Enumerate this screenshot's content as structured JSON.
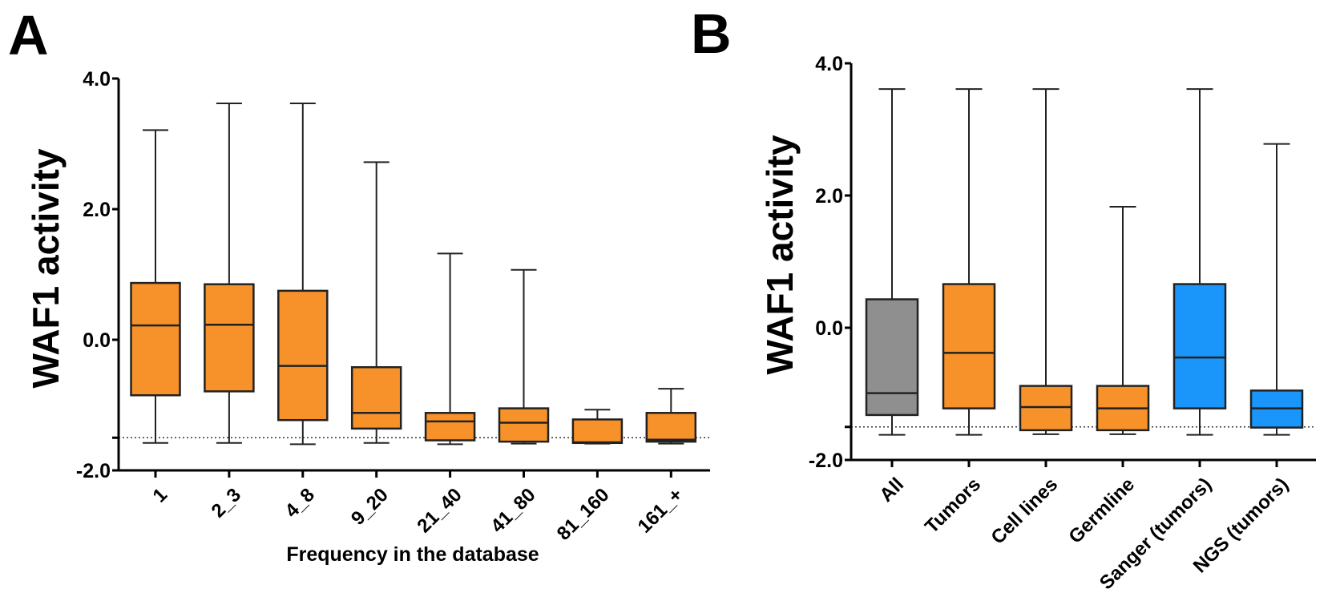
{
  "chart_data": [
    {
      "type": "boxplot",
      "panel": "A",
      "title": "",
      "xlabel": "Frequency in the database",
      "ylabel": "WAF1 activity",
      "ylim": [
        -2.0,
        4.0
      ],
      "yticks": [
        -2.0,
        0.0,
        2.0,
        4.0
      ],
      "ytick_labels": [
        "-2.0",
        "0.0",
        "2.0",
        "4.0"
      ],
      "reference_line": -1.5,
      "grid": false,
      "categories": [
        "1",
        "2_3",
        "4_8",
        "9_20",
        "21_40",
        "41_80",
        "81_160",
        "161_+"
      ],
      "boxes": [
        {
          "category": "1",
          "whisker_low": -1.58,
          "q1": -0.85,
          "median": 0.22,
          "q3": 0.87,
          "whisker_high": 3.21,
          "color": "#f7922a"
        },
        {
          "category": "2_3",
          "whisker_low": -1.58,
          "q1": -0.79,
          "median": 0.23,
          "q3": 0.85,
          "whisker_high": 3.62,
          "color": "#f7922a"
        },
        {
          "category": "4_8",
          "whisker_low": -1.6,
          "q1": -1.23,
          "median": -0.4,
          "q3": 0.75,
          "whisker_high": 3.62,
          "color": "#f7922a"
        },
        {
          "category": "9_20",
          "whisker_low": -1.58,
          "q1": -1.36,
          "median": -1.12,
          "q3": -0.42,
          "whisker_high": 2.72,
          "color": "#f7922a"
        },
        {
          "category": "21_40",
          "whisker_low": -1.6,
          "q1": -1.54,
          "median": -1.25,
          "q3": -1.12,
          "whisker_high": 1.32,
          "color": "#f7922a"
        },
        {
          "category": "41_80",
          "whisker_low": -1.59,
          "q1": -1.56,
          "median": -1.27,
          "q3": -1.05,
          "whisker_high": 1.07,
          "color": "#f7922a"
        },
        {
          "category": "81_160",
          "whisker_low": -1.59,
          "q1": -1.58,
          "median": -1.57,
          "q3": -1.22,
          "whisker_high": -1.07,
          "color": "#f7922a"
        },
        {
          "category": "161_+",
          "whisker_low": -1.59,
          "q1": -1.56,
          "median": -1.53,
          "q3": -1.12,
          "whisker_high": -0.75,
          "color": "#f7922a"
        }
      ]
    },
    {
      "type": "boxplot",
      "panel": "B",
      "title": "",
      "xlabel": "",
      "ylabel": "WAF1 activity",
      "ylim": [
        -2.0,
        4.0
      ],
      "yticks": [
        -2.0,
        0.0,
        2.0,
        4.0
      ],
      "ytick_labels": [
        "-2.0",
        "0.0",
        "2.0",
        "4.0"
      ],
      "reference_line": -1.5,
      "grid": false,
      "categories": [
        "All",
        "Tumors",
        "Cell lines",
        "Germline",
        "Sanger (tumors)",
        "NGS (tumors)"
      ],
      "boxes": [
        {
          "category": "All",
          "whisker_low": -1.62,
          "q1": -1.32,
          "median": -0.99,
          "q3": 0.43,
          "whisker_high": 3.61,
          "color": "#8f8f8f"
        },
        {
          "category": "Tumors",
          "whisker_low": -1.62,
          "q1": -1.22,
          "median": -0.38,
          "q3": 0.66,
          "whisker_high": 3.61,
          "color": "#f7922a"
        },
        {
          "category": "Cell lines",
          "whisker_low": -1.61,
          "q1": -1.55,
          "median": -1.2,
          "q3": -0.88,
          "whisker_high": 3.61,
          "color": "#f7922a"
        },
        {
          "category": "Germline",
          "whisker_low": -1.61,
          "q1": -1.55,
          "median": -1.22,
          "q3": -0.88,
          "whisker_high": 1.83,
          "color": "#f7922a"
        },
        {
          "category": "Sanger (tumors)",
          "whisker_low": -1.62,
          "q1": -1.22,
          "median": -0.45,
          "q3": 0.66,
          "whisker_high": 3.61,
          "color": "#1a96fa"
        },
        {
          "category": "NGS (tumors)",
          "whisker_low": -1.62,
          "q1": -1.51,
          "median": -1.22,
          "q3": -0.95,
          "whisker_high": 2.78,
          "color": "#1a96fa"
        }
      ]
    }
  ],
  "panels": {
    "a_letter": "A",
    "b_letter": "B"
  }
}
